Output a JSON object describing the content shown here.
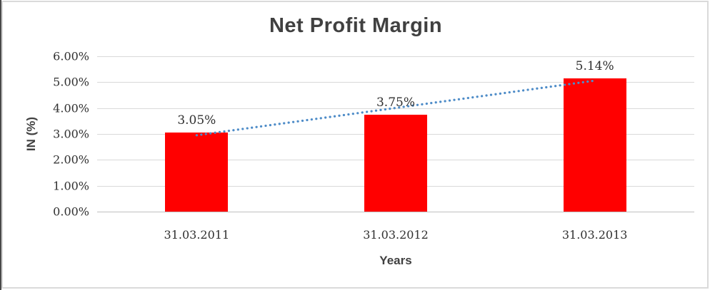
{
  "chart_data": {
    "type": "bar",
    "title": "Net Profit Margin",
    "xlabel": "Years",
    "ylabel": "IN (%)",
    "categories": [
      "31.03.2011",
      "31.03.2012",
      "31.03.2013"
    ],
    "series": [
      {
        "name": "Net Profit Margin",
        "values": [
          3.05,
          3.75,
          5.14
        ]
      }
    ],
    "data_labels": [
      "3.05%",
      "3.75%",
      "5.14%"
    ],
    "y_ticks": [
      "6.00%",
      "5.00%",
      "4.00%",
      "3.00%",
      "2.00%",
      "1.00%",
      "0.00%"
    ],
    "ylim": [
      0,
      6
    ],
    "grid": true,
    "legend_position": "none",
    "bar_color": "#FF0000",
    "trendline": {
      "type": "linear",
      "style": "dotted",
      "color": "#4E8CC8",
      "start_value": 2.95,
      "end_value": 5.06
    },
    "colors": {
      "gridline": "#D9D9D9",
      "axis_line": "#BFBFBF",
      "title_text": "#404040",
      "tick_text": "#303030"
    }
  }
}
